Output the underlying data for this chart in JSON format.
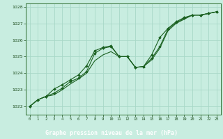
{
  "title": "Graphe pression niveau de la mer (hPa)",
  "background_color": "#c8ede0",
  "grid_color": "#a8d8c8",
  "line_color": "#1a6020",
  "dark_green_banner": "#2a5a2a",
  "banner_text_color": "#ffffff",
  "ylim": [
    1021.5,
    1028.2
  ],
  "yticks": [
    1022,
    1023,
    1024,
    1025,
    1026,
    1027,
    1028
  ],
  "x_labels": [
    "0",
    "1",
    "2",
    "3",
    "4",
    "5",
    "6",
    "7",
    "8",
    "9",
    "10",
    "11",
    "12",
    "13",
    "14",
    "15",
    "16",
    "17",
    "18",
    "19",
    "20",
    "21",
    "22",
    "23"
  ],
  "main_series": [
    1022.0,
    1022.4,
    1022.6,
    1022.8,
    1023.1,
    1023.5,
    1023.7,
    1024.1,
    1025.2,
    1025.5,
    1025.6,
    1025.0,
    1025.0,
    1024.35,
    1024.4,
    1024.9,
    1025.6,
    1026.65,
    1027.05,
    1027.3,
    1027.5,
    1027.5,
    1027.6,
    1027.7
  ],
  "upper_series": [
    1022.0,
    1022.4,
    1022.6,
    1023.05,
    1023.3,
    1023.6,
    1023.9,
    1024.45,
    1025.35,
    1025.55,
    1025.65,
    1025.0,
    1025.0,
    1024.35,
    1024.4,
    1025.1,
    1026.15,
    1026.7,
    1027.1,
    1027.35,
    1027.5,
    1027.5,
    1027.6,
    1027.7
  ],
  "lower_series": [
    1022.0,
    1022.4,
    1022.6,
    1022.7,
    1023.0,
    1023.35,
    1023.65,
    1024.0,
    1024.75,
    1025.1,
    1025.3,
    1025.0,
    1025.0,
    1024.35,
    1024.4,
    1024.8,
    1025.5,
    1026.55,
    1027.0,
    1027.25,
    1027.5,
    1027.5,
    1027.6,
    1027.7
  ]
}
